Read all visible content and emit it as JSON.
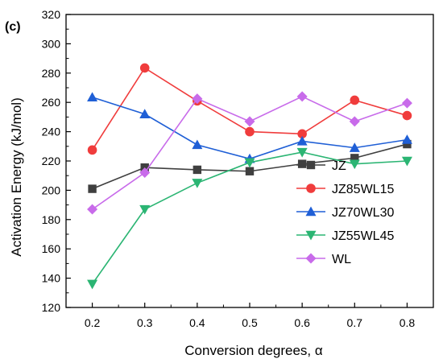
{
  "panel_label": "(c)",
  "chart_data": {
    "type": "line",
    "title": "",
    "xlabel": "Conversion degrees, α",
    "ylabel": "Activation Energy (kJ/mol)",
    "x": [
      0.2,
      0.3,
      0.4,
      0.5,
      0.6,
      0.7,
      0.8
    ],
    "x_tick_labels": [
      "0.2",
      "0.3",
      "0.4",
      "0.5",
      "0.6",
      "0.7",
      "0.8"
    ],
    "xlim": [
      0.15,
      0.85
    ],
    "ylim": [
      120,
      320
    ],
    "y_ticks": [
      120,
      140,
      160,
      180,
      200,
      220,
      240,
      260,
      280,
      300,
      320
    ],
    "y_tick_labels": [
      "120",
      "140",
      "160",
      "180",
      "200",
      "220",
      "240",
      "260",
      "280",
      "300",
      "320"
    ],
    "grid": false,
    "legend_position": "lower-right",
    "series": [
      {
        "name": "JZ",
        "color": "#3f3f3f",
        "marker": "square",
        "values": [
          201,
          215.5,
          214,
          213,
          218,
          222,
          231.5
        ]
      },
      {
        "name": "JZ85WL15",
        "color": "#f03c3c",
        "marker": "circle",
        "values": [
          227.5,
          283.5,
          261,
          240,
          238.5,
          261.5,
          251
        ]
      },
      {
        "name": "JZ70WL30",
        "color": "#1f5fd6",
        "marker": "triangle-up",
        "values": [
          263.5,
          252,
          231,
          221.5,
          233.5,
          229,
          234.5
        ]
      },
      {
        "name": "JZ55WL45",
        "color": "#2bb573",
        "marker": "triangle-down",
        "values": [
          136,
          187,
          205,
          219,
          226,
          218,
          220
        ]
      },
      {
        "name": "WL",
        "color": "#c86bea",
        "marker": "diamond",
        "values": [
          187,
          212,
          262.5,
          247,
          264,
          247,
          259.5
        ]
      }
    ]
  }
}
